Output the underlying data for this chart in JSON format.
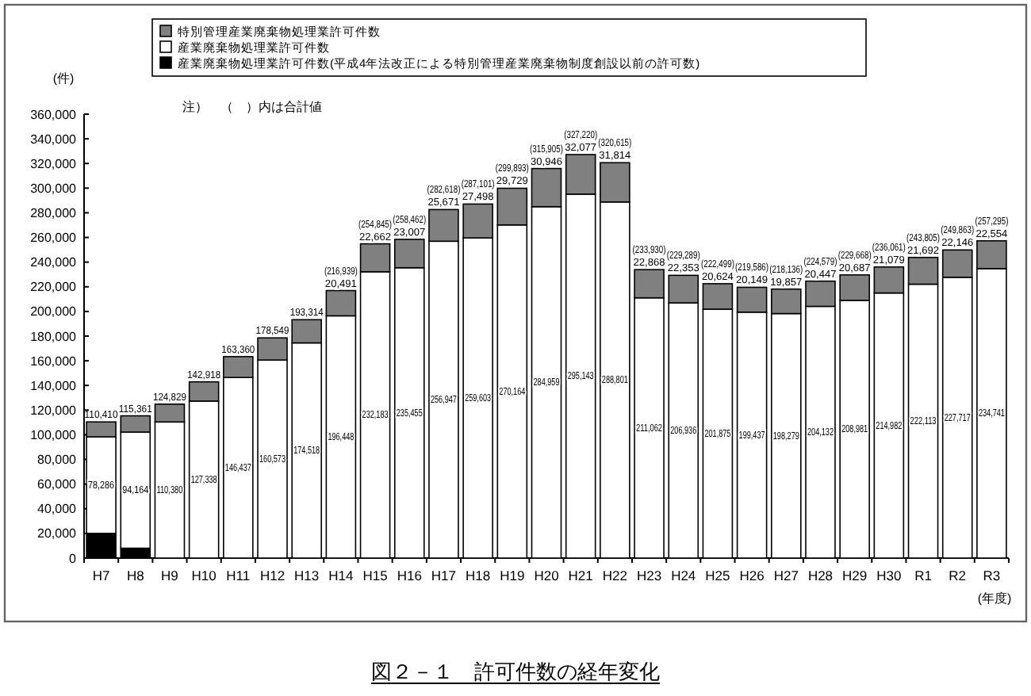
{
  "chart_data": {
    "type": "bar",
    "stacked": true,
    "title": "図２－１　許可件数の経年変化",
    "ylabel": "(件)",
    "xlabel": "(年度)",
    "annotations": [
      "注）　（　）内は合計値"
    ],
    "categories": [
      "H7",
      "H8",
      "H9",
      "H10",
      "H11",
      "H12",
      "H13",
      "H14",
      "H15",
      "H16",
      "H17",
      "H18",
      "H19",
      "H20",
      "H21",
      "H22",
      "H23",
      "H24",
      "H25",
      "H26",
      "H27",
      "H28",
      "H29",
      "H30",
      "R1",
      "R2",
      "R3"
    ],
    "series": [
      {
        "name": "産業廃棄物処理業許可件数(平成4年法改正による特別管理産業廃棄物制度創設以前の許可数)",
        "color": "#000000",
        "values": [
          20000,
          8000,
          0,
          0,
          0,
          0,
          0,
          0,
          0,
          0,
          0,
          0,
          0,
          0,
          0,
          0,
          0,
          0,
          0,
          0,
          0,
          0,
          0,
          0,
          0,
          0,
          0
        ]
      },
      {
        "name": "産業廃棄物処理業許可件数",
        "color": "#ffffff",
        "values": [
          78286,
          94164,
          110380,
          127338,
          146437,
          160573,
          174518,
          196448,
          232183,
          235455,
          256947,
          259603,
          270164,
          284959,
          295143,
          288801,
          211062,
          206936,
          201875,
          199437,
          198279,
          204132,
          208981,
          214982,
          222113,
          227717,
          234741
        ],
        "value_labels": [
          "78,286",
          "94,164",
          "110,380",
          "127,338",
          "146,437",
          "160,573",
          "174,518",
          "196,448",
          "232,183",
          "235,455",
          "256,947",
          "259,603",
          "270,164",
          "284,959",
          "295,143",
          "288,801",
          "211,062",
          "206,936",
          "201,875",
          "199,437",
          "198,279",
          "204,132",
          "208,981",
          "214,982",
          "222,113",
          "227,717",
          "234,741"
        ]
      },
      {
        "name": "特別管理産業廃棄物処理業許可件数",
        "color": "#808080",
        "values": [
          12124,
          13197,
          14449,
          15580,
          16923,
          17976,
          18796,
          20491,
          22662,
          23007,
          25671,
          27498,
          29729,
          30946,
          32077,
          31814,
          22868,
          22353,
          20624,
          20149,
          19857,
          20447,
          20687,
          21079,
          21692,
          22146,
          22554
        ],
        "value_labels": [
          null,
          null,
          null,
          null,
          null,
          null,
          null,
          "20,491",
          "22,662",
          "23,007",
          "25,671",
          "27,498",
          "29,729",
          "30,946",
          "32,077",
          "31,814",
          "22,868",
          "22,353",
          "20,624",
          "20,149",
          "19,857",
          "20,447",
          "20,687",
          "21,079",
          "21,692",
          "22,146",
          "22,554"
        ]
      }
    ],
    "totals": [
      "110,410",
      "115,361",
      "124,829",
      "142,918",
      "163,360",
      "178,549",
      "193,314",
      "(216,939)",
      "(254,845)",
      "(258,462)",
      "(282,618)",
      "(287,101)",
      "(299,893)",
      "(315,905)",
      "(327,220)",
      "(320,615)",
      "(233,930)",
      "(229,289)",
      "(222,499)",
      "(219,586)",
      "(218,136)",
      "(224,579)",
      "(229,668)",
      "(236,061)",
      "(243,805)",
      "(249,863)",
      "(257,295)"
    ],
    "ylim": [
      0,
      360000
    ],
    "yticks": [
      0,
      {
        "value": 20000,
        "label": "20,000"
      },
      {
        "value": 40000,
        "label": "40,000"
      },
      {
        "value": 60000,
        "label": "60,000"
      },
      {
        "value": 80000,
        "label": "80,000"
      },
      {
        "value": 100000,
        "label": "100,000"
      },
      {
        "value": 120000,
        "label": "120,000"
      },
      {
        "value": 140000,
        "label": "140,000"
      },
      {
        "value": 160000,
        "label": "160,000"
      },
      {
        "value": 180000,
        "label": "180,000"
      },
      {
        "value": 200000,
        "label": "200,000"
      },
      {
        "value": 220000,
        "label": "220,000"
      },
      {
        "value": 240000,
        "label": "240,000"
      },
      {
        "value": 260000,
        "label": "260,000"
      },
      {
        "value": 280000,
        "label": "280,000"
      },
      {
        "value": 300000,
        "label": "300,000"
      },
      {
        "value": 320000,
        "label": "320,000"
      },
      {
        "value": 340000,
        "label": "340,000"
      },
      {
        "value": 360000,
        "label": "360,000"
      }
    ],
    "legend": "top"
  }
}
